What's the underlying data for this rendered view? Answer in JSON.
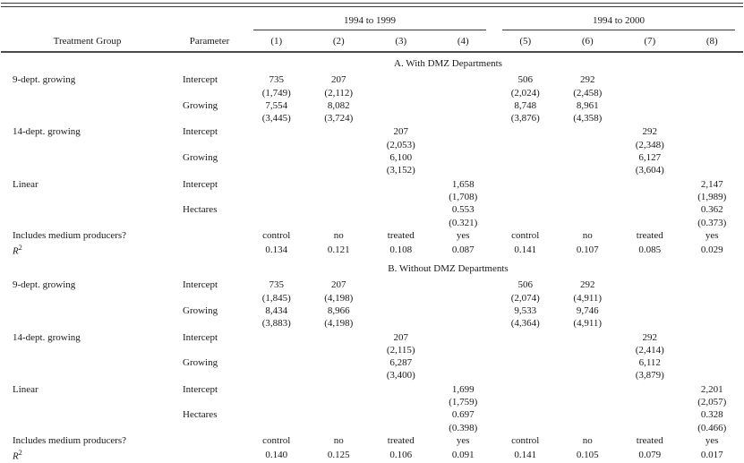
{
  "table": {
    "span_headers": [
      {
        "label": "1994 to 1999"
      },
      {
        "label": "1994 to 2000"
      }
    ],
    "col_headers": [
      "Treatment Group",
      "Parameter",
      "(1)",
      "(2)",
      "(3)",
      "(4)",
      "(5)",
      "(6)",
      "(7)",
      "(8)"
    ],
    "panels": [
      {
        "title": "A. With DMZ Departments",
        "groups": [
          {
            "treatment": "9-dept. growing",
            "rows": [
              {
                "parameter": "Intercept",
                "values": [
                  "735",
                  "207",
                  "",
                  "",
                  "506",
                  "292",
                  "",
                  ""
                ]
              },
              {
                "parameter": "",
                "values": [
                  "(1,749)",
                  "(2,112)",
                  "",
                  "",
                  "(2,024)",
                  "(2,458)",
                  "",
                  ""
                ]
              },
              {
                "parameter": "Growing",
                "values": [
                  "7,554",
                  "8,082",
                  "",
                  "",
                  "8,748",
                  "8,961",
                  "",
                  ""
                ]
              },
              {
                "parameter": "",
                "values": [
                  "(3,445)",
                  "(3,724)",
                  "",
                  "",
                  "(3,876)",
                  "(4,358)",
                  "",
                  ""
                ]
              }
            ]
          },
          {
            "treatment": "14-dept. growing",
            "rows": [
              {
                "parameter": "Intercept",
                "values": [
                  "",
                  "",
                  "207",
                  "",
                  "",
                  "",
                  "292",
                  ""
                ]
              },
              {
                "parameter": "",
                "values": [
                  "",
                  "",
                  "(2,053)",
                  "",
                  "",
                  "",
                  "(2,348)",
                  ""
                ]
              },
              {
                "parameter": "Growing",
                "values": [
                  "",
                  "",
                  "6,100",
                  "",
                  "",
                  "",
                  "6,127",
                  ""
                ]
              },
              {
                "parameter": "",
                "values": [
                  "",
                  "",
                  "(3,152)",
                  "",
                  "",
                  "",
                  "(3,604)",
                  ""
                ]
              }
            ]
          },
          {
            "treatment": "Linear",
            "rows": [
              {
                "parameter": "Intercept",
                "values": [
                  "",
                  "",
                  "",
                  "1,658",
                  "",
                  "",
                  "",
                  "2,147"
                ]
              },
              {
                "parameter": "",
                "values": [
                  "",
                  "",
                  "",
                  "(1,708)",
                  "",
                  "",
                  "",
                  "(1,989)"
                ]
              },
              {
                "parameter": "Hectares",
                "values": [
                  "",
                  "",
                  "",
                  "0.553",
                  "",
                  "",
                  "",
                  "0.362"
                ]
              },
              {
                "parameter": "",
                "values": [
                  "",
                  "",
                  "",
                  "(0.321)",
                  "",
                  "",
                  "",
                  "(0.373)"
                ]
              }
            ]
          }
        ],
        "summary": [
          {
            "label": "Includes medium producers?",
            "sup": "",
            "values": [
              "control",
              "no",
              "treated",
              "yes",
              "control",
              "no",
              "treated",
              "yes"
            ]
          },
          {
            "label": "R",
            "sup": "2",
            "values": [
              "0.134",
              "0.121",
              "0.108",
              "0.087",
              "0.141",
              "0.107",
              "0.085",
              "0.029"
            ]
          }
        ]
      },
      {
        "title": "B. Without DMZ Departments",
        "groups": [
          {
            "treatment": "9-dept. growing",
            "rows": [
              {
                "parameter": "Intercept",
                "values": [
                  "735",
                  "207",
                  "",
                  "",
                  "506",
                  "292",
                  "",
                  ""
                ]
              },
              {
                "parameter": "",
                "values": [
                  "(1,845)",
                  "(4,198)",
                  "",
                  "",
                  "(2,074)",
                  "(4,911)",
                  "",
                  ""
                ]
              },
              {
                "parameter": "Growing",
                "values": [
                  "8,434",
                  "8,966",
                  "",
                  "",
                  "9,533",
                  "9,746",
                  "",
                  ""
                ]
              },
              {
                "parameter": "",
                "values": [
                  "(3,883)",
                  "(4,198)",
                  "",
                  "",
                  "(4,364)",
                  "(4,911)",
                  "",
                  ""
                ]
              }
            ]
          },
          {
            "treatment": "14-dept. growing",
            "rows": [
              {
                "parameter": "Intercept",
                "values": [
                  "",
                  "",
                  "207",
                  "",
                  "",
                  "",
                  "292",
                  ""
                ]
              },
              {
                "parameter": "",
                "values": [
                  "",
                  "",
                  "(2,115)",
                  "",
                  "",
                  "",
                  "(2,414)",
                  ""
                ]
              },
              {
                "parameter": "Growing",
                "values": [
                  "",
                  "",
                  "6,287",
                  "",
                  "",
                  "",
                  "6,112",
                  ""
                ]
              },
              {
                "parameter": "",
                "values": [
                  "",
                  "",
                  "(3,400)",
                  "",
                  "",
                  "",
                  "(3,879)",
                  ""
                ]
              }
            ]
          },
          {
            "treatment": "Linear",
            "rows": [
              {
                "parameter": "Intercept",
                "values": [
                  "",
                  "",
                  "",
                  "1,699",
                  "",
                  "",
                  "",
                  "2,201"
                ]
              },
              {
                "parameter": "",
                "values": [
                  "",
                  "",
                  "",
                  "(1,759)",
                  "",
                  "",
                  "",
                  "(2,057)"
                ]
              },
              {
                "parameter": "Hectares",
                "values": [
                  "",
                  "",
                  "",
                  "0.697",
                  "",
                  "",
                  "",
                  "0.328"
                ]
              },
              {
                "parameter": "",
                "values": [
                  "",
                  "",
                  "",
                  "(0.398)",
                  "",
                  "",
                  "",
                  "(0.466)"
                ]
              }
            ]
          }
        ],
        "summary": [
          {
            "label": "Includes medium producers?",
            "sup": "",
            "values": [
              "control",
              "no",
              "treated",
              "yes",
              "control",
              "no",
              "treated",
              "yes"
            ]
          },
          {
            "label": "R",
            "sup": "2",
            "values": [
              "0.140",
              "0.125",
              "0.106",
              "0.091",
              "0.141",
              "0.105",
              "0.079",
              "0.017"
            ]
          }
        ]
      }
    ]
  }
}
